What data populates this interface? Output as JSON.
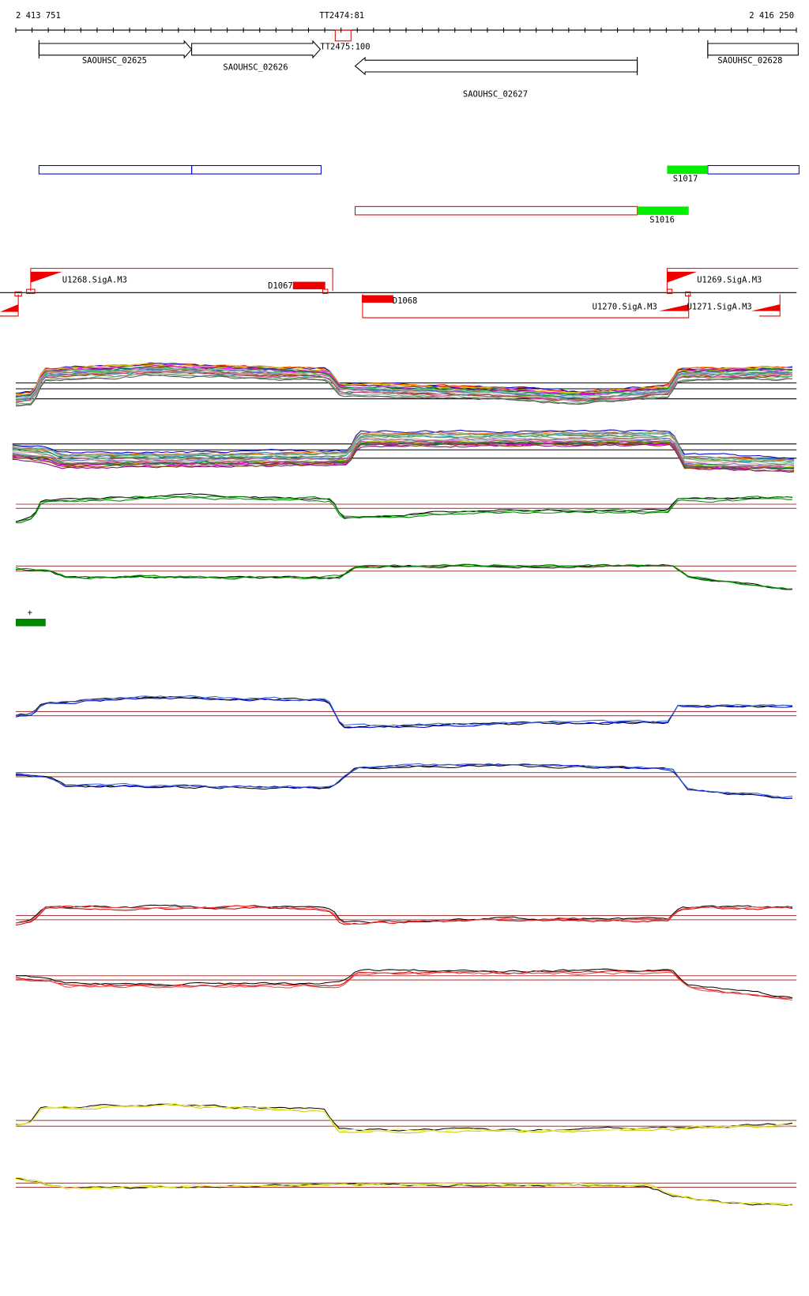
{
  "ruler": {
    "start": "2 413 751",
    "marker": "TT2474:81",
    "end": "2 416 250"
  },
  "genes": {
    "g1": "SAOUHSC_02625",
    "g2": "SAOUHSC_02626",
    "terminator": "TT2475:100",
    "g3": "SAOUHSC_02627",
    "g4": "SAOUHSC_02628"
  },
  "segments": {
    "s1": "S1017",
    "s2": "S1016"
  },
  "promoters": {
    "p1": "U1268.SigA.M3",
    "d1": "D1067",
    "d2": "D1068",
    "p2": "U1269.SigA.M3",
    "p3": "U1270.SigA.M3",
    "p4": "U1271.SigA.M3"
  },
  "strand": "+"
}
